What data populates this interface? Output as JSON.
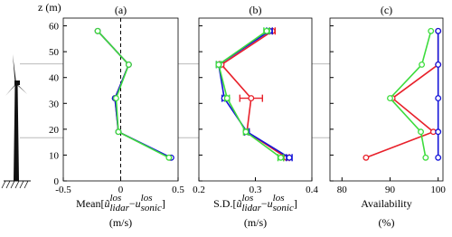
{
  "chart_data": [
    {
      "type": "line",
      "title": "(a)",
      "ylabel": "z (m)",
      "xlabel": [
        {
          "text": "Mean[",
          "style": "base"
        },
        {
          "text": "ũ",
          "style": "base"
        },
        {
          "text": "los",
          "style": "sup"
        },
        {
          "text": "lidar",
          "style": "sub"
        },
        {
          "text": " − ",
          "style": "base"
        },
        {
          "text": "u",
          "style": "base"
        },
        {
          "text": "los",
          "style": "sup"
        },
        {
          "text": "sonic",
          "style": "sub"
        },
        {
          "text": "]",
          "style": "base"
        }
      ],
      "xunit": "(m/s)",
      "y": [
        58,
        45,
        32,
        19,
        9
      ],
      "series": [
        {
          "color": "#e8202a",
          "values": [
            -0.2,
            0.07,
            -0.05,
            -0.02,
            0.43
          ]
        },
        {
          "color": "#1414d8",
          "values": [
            -0.2,
            0.07,
            -0.05,
            -0.02,
            0.44
          ]
        },
        {
          "color": "#3ddc3d",
          "values": [
            -0.2,
            0.07,
            -0.04,
            -0.02,
            0.42
          ]
        }
      ],
      "xlim": [
        -0.5,
        0.5
      ],
      "xticks": [
        -0.5,
        0,
        0.5
      ],
      "ylim": [
        0,
        63
      ],
      "yticks": [
        0,
        10,
        20,
        30,
        40,
        50,
        60
      ],
      "yticklabels": true,
      "vline": 0,
      "hlines": [
        45.3,
        16.7
      ]
    },
    {
      "type": "line",
      "title": "(b)",
      "xlabel": [
        {
          "text": "S.D.[",
          "style": "base"
        },
        {
          "text": "ũ",
          "style": "base"
        },
        {
          "text": "los",
          "style": "sup"
        },
        {
          "text": "lidar",
          "style": "sub"
        },
        {
          "text": " − ",
          "style": "base"
        },
        {
          "text": "u",
          "style": "base"
        },
        {
          "text": "los",
          "style": "sup"
        },
        {
          "text": "sonic",
          "style": "sub"
        },
        {
          "text": "]",
          "style": "base"
        }
      ],
      "xunit": "(m/s)",
      "y": [
        58,
        45,
        32,
        19,
        9
      ],
      "series": [
        {
          "color": "#e8202a",
          "values": [
            0.33,
            0.24,
            0.2925,
            0.285,
            0.355
          ],
          "errors": [
            0.005,
            0.004,
            0.02,
            0.004,
            0.005
          ]
        },
        {
          "color": "#1414d8",
          "values": [
            0.325,
            0.235,
            0.245,
            0.285,
            0.36
          ],
          "errors": [
            0.005,
            0.004,
            0.004,
            0.004,
            0.005
          ]
        },
        {
          "color": "#3ddc3d",
          "values": [
            0.32,
            0.235,
            0.25,
            0.283,
            0.345
          ],
          "errors": [
            0.005,
            0.004,
            0.004,
            0.004,
            0.005
          ]
        }
      ],
      "xlim": [
        0.2,
        0.4
      ],
      "xticks": [
        0.2,
        0.3,
        0.4
      ],
      "ylim": [
        0,
        63
      ],
      "yticks": [
        0,
        10,
        20,
        30,
        40,
        50,
        60
      ],
      "yticklabels": false
    },
    {
      "type": "line",
      "title": "(c)",
      "xlabel": [
        {
          "text": "Availability",
          "style": "base"
        }
      ],
      "xunit": "(%)",
      "y": [
        58,
        45,
        32,
        19,
        9
      ],
      "series": [
        {
          "color": "#e8202a",
          "values": [
            100,
            100,
            90.5,
            99,
            85
          ]
        },
        {
          "color": "#1414d8",
          "values": [
            100,
            100,
            100,
            100,
            100
          ]
        },
        {
          "color": "#3ddc3d",
          "values": [
            98.5,
            96.6,
            90,
            96.4,
            97.4
          ]
        }
      ],
      "xlim": [
        77.5,
        101
      ],
      "xticks": [
        80,
        90,
        100
      ],
      "ylim": [
        0,
        63
      ],
      "yticks": [
        0,
        10,
        20,
        30,
        40,
        50,
        60
      ],
      "yticklabels": false
    }
  ]
}
